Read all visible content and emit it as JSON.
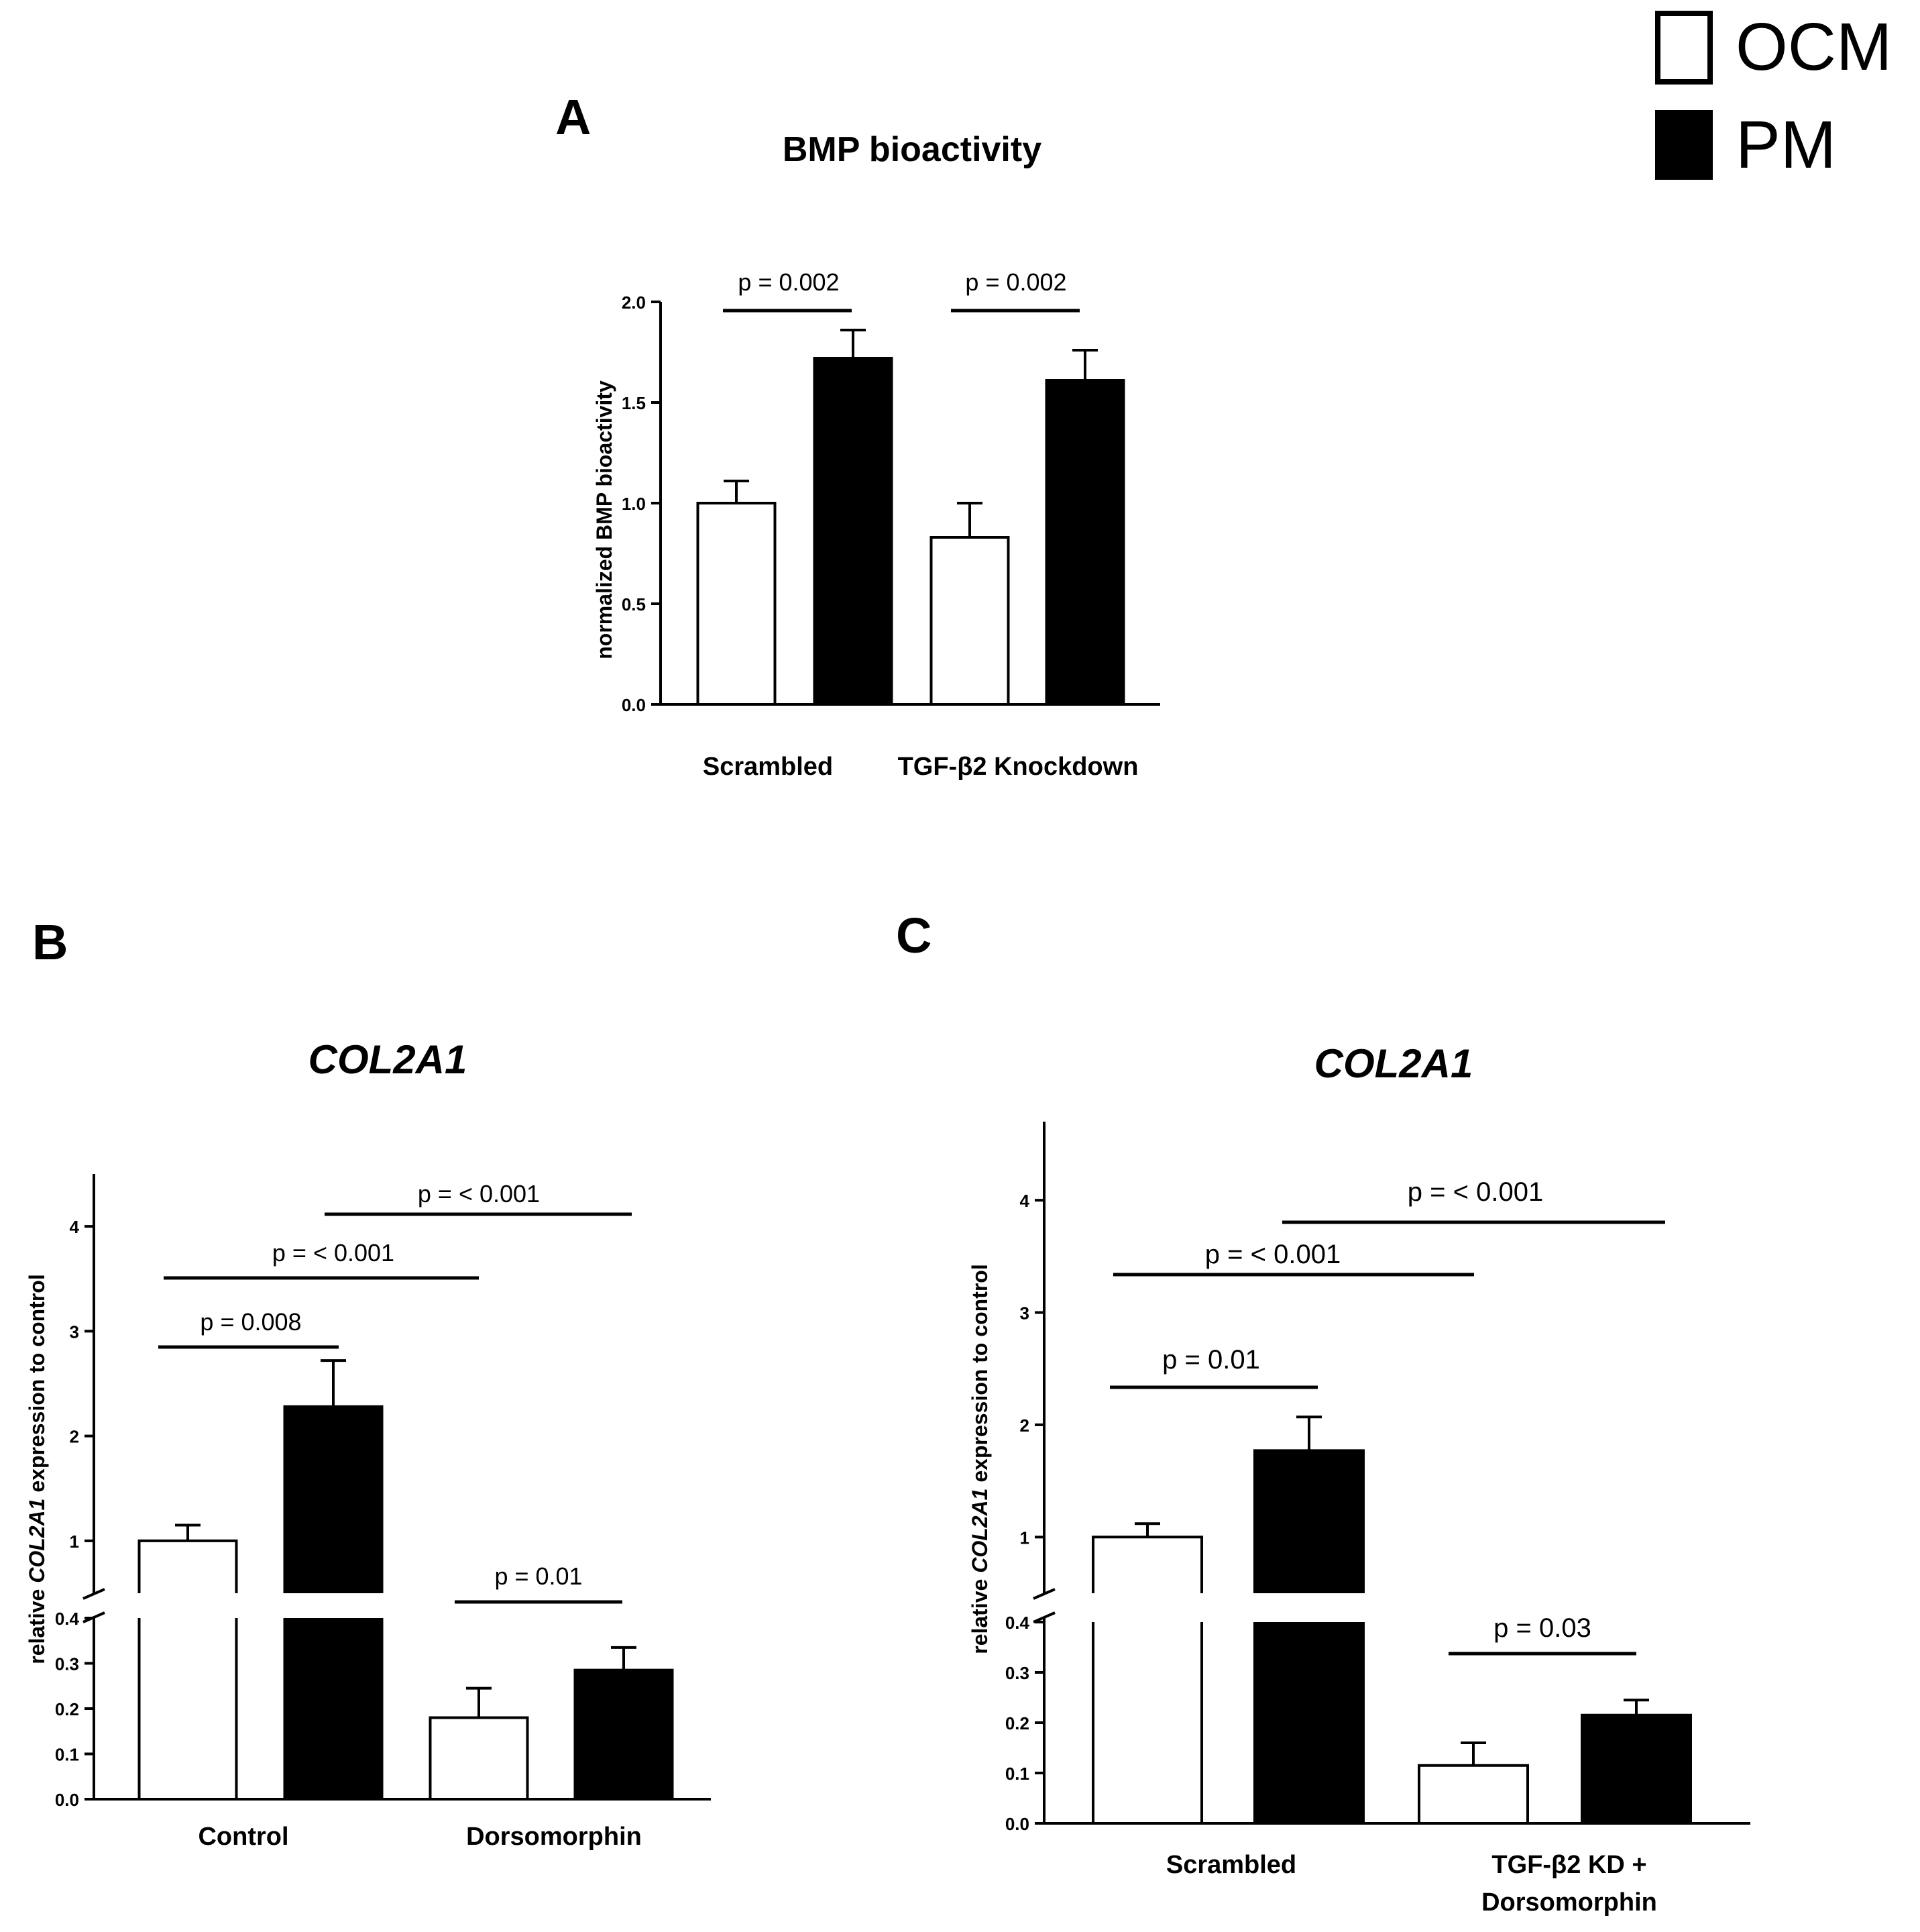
{
  "legend": {
    "items": [
      {
        "label": "OCM",
        "fill": "#ffffff"
      },
      {
        "label": "PM",
        "fill": "#000000"
      }
    ],
    "placement": "top-right"
  },
  "panels": {
    "A": {
      "letter": "A"
    },
    "B": {
      "letter": "B"
    },
    "C": {
      "letter": "C"
    }
  },
  "chart_data": [
    {
      "panel": "A",
      "type": "bar",
      "title": "BMP bioactivity",
      "ylabel": "normalized BMP bioactivity",
      "xlabel": "",
      "ylim": [
        0,
        2.0
      ],
      "yticks": [
        "0.0",
        "0.5",
        "1.0",
        "1.5",
        "2.0"
      ],
      "categories": [
        "Scrambled",
        "TGF-β2 Knockdown"
      ],
      "series": [
        {
          "name": "OCM",
          "values": [
            1.0,
            0.83
          ],
          "errors": [
            0.11,
            0.17
          ]
        },
        {
          "name": "PM",
          "values": [
            1.72,
            1.61
          ],
          "errors": [
            0.14,
            0.15
          ]
        }
      ],
      "annotations": [
        "p = 0.002",
        "p = 0.002"
      ]
    },
    {
      "panel": "B",
      "type": "bar",
      "title": "COL2A1",
      "ylabel_parts": [
        "relative ",
        "COL2A1",
        " expression to control"
      ],
      "xlabel": "",
      "axis_break": [
        0.4,
        0.5
      ],
      "ylim_lower": [
        0,
        0.4
      ],
      "ylim_upper": [
        0.5,
        4.5
      ],
      "yticks_lower": [
        "0.0",
        "0.1",
        "0.2",
        "0.3",
        "0.4"
      ],
      "yticks_upper": [
        "1",
        "2",
        "3",
        "4"
      ],
      "categories": [
        "Control",
        "Dorsomorphin"
      ],
      "series": [
        {
          "name": "OCM",
          "values": [
            1.0,
            0.18
          ],
          "errors": [
            0.15,
            0.065
          ]
        },
        {
          "name": "PM",
          "values": [
            2.28,
            0.285
          ],
          "errors": [
            0.44,
            0.05
          ]
        }
      ],
      "annotations": [
        "p = 0.008",
        "p = < 0.001",
        "p = < 0.001",
        "p = 0.01"
      ]
    },
    {
      "panel": "C",
      "type": "bar",
      "title": "COL2A1",
      "ylabel_parts": [
        "relative ",
        "COL2A1",
        " expression to control"
      ],
      "xlabel": "",
      "axis_break": [
        0.4,
        0.5
      ],
      "ylim_lower": [
        0,
        0.4
      ],
      "ylim_upper": [
        0.5,
        4.7
      ],
      "yticks_lower": [
        "0.0",
        "0.1",
        "0.2",
        "0.3",
        "0.4"
      ],
      "yticks_upper": [
        "1",
        "2",
        "3",
        "4"
      ],
      "categories": [
        "Scrambled",
        "TGF-β2 KD + Dorsomorphin"
      ],
      "category_lines": [
        [
          "Scrambled"
        ],
        [
          "TGF-β2 KD +",
          "Dorsomorphin"
        ]
      ],
      "series": [
        {
          "name": "OCM",
          "values": [
            1.0,
            0.115
          ],
          "errors": [
            0.12,
            0.045
          ]
        },
        {
          "name": "PM",
          "values": [
            1.77,
            0.215
          ],
          "errors": [
            0.3,
            0.03
          ]
        }
      ],
      "annotations": [
        "p = 0.01",
        "p = < 0.001",
        "p = < 0.001",
        "p = 0.03"
      ]
    }
  ]
}
